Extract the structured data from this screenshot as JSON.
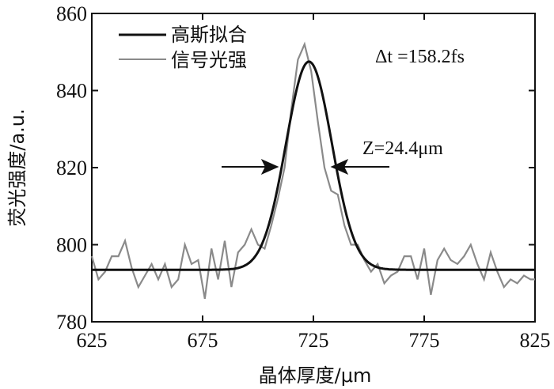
{
  "chart_data": {
    "type": "line",
    "xlabel": "晶体厚度/μm",
    "ylabel": "荧光强度/a.u.",
    "xlim": [
      625,
      825
    ],
    "ylim": [
      780,
      860
    ],
    "xticks": [
      625,
      675,
      725,
      775,
      825
    ],
    "yticks": [
      780,
      800,
      820,
      840,
      860
    ],
    "tick_labels_x": [
      "625",
      "675",
      "725",
      "775",
      "825"
    ],
    "tick_labels_y": [
      "780",
      "800",
      "820",
      "840",
      "860"
    ],
    "legend_position": "top-left",
    "series": [
      {
        "name": "高斯拟合",
        "style": "solid-thick",
        "color": "#111111",
        "baseline": 793.5,
        "amplitude": 54.0,
        "center": 723.0,
        "fwhm": 24.4
      },
      {
        "name": "信号光强",
        "style": "thin",
        "color": "#888888",
        "x": [
          625,
          628,
          631,
          634,
          637,
          640,
          643,
          646,
          649,
          652,
          655,
          658,
          661,
          664,
          667,
          670,
          673,
          676,
          679,
          682,
          685,
          688,
          691,
          694,
          697,
          700,
          703,
          706,
          709,
          712,
          715,
          718,
          721,
          724,
          727,
          730,
          733,
          736,
          739,
          742,
          745,
          748,
          751,
          754,
          757,
          760,
          763,
          766,
          769,
          772,
          775,
          778,
          781,
          784,
          787,
          790,
          793,
          796,
          799,
          802,
          805,
          808,
          811,
          814,
          817,
          820,
          823,
          825
        ],
        "y": [
          797,
          791,
          793,
          797,
          797,
          801,
          794,
          789,
          792,
          795,
          791,
          795,
          789,
          791,
          800,
          795,
          796,
          786,
          799,
          791,
          801,
          789,
          798,
          800,
          804,
          800,
          799,
          805,
          812,
          820,
          835,
          848,
          852,
          845,
          832,
          820,
          814,
          813,
          805,
          800,
          800,
          796,
          793,
          795,
          790,
          792,
          793,
          797,
          797,
          791,
          799,
          787,
          796,
          799,
          796,
          795,
          797,
          800,
          795,
          791,
          798,
          793,
          789,
          791,
          790,
          792,
          791,
          791
        ]
      }
    ],
    "annotations": {
      "pulse_width": "Δt =158.2fs",
      "fwhm_label": "Z=24.4μm"
    }
  }
}
